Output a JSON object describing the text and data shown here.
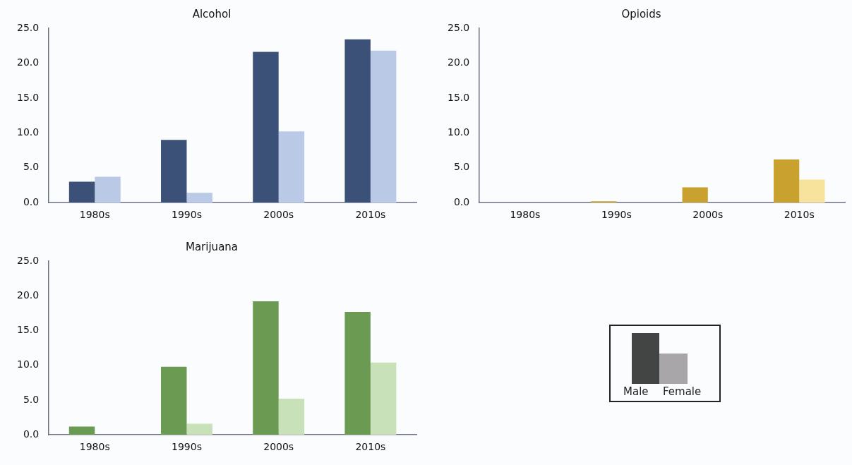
{
  "chart_data": [
    {
      "type": "bar",
      "title": "Alcohol",
      "categories": [
        "1980s",
        "1990s",
        "2000s",
        "2010s"
      ],
      "series": [
        {
          "color": "#3b5178",
          "values": [
            3.0,
            9.0,
            21.6,
            23.4
          ]
        },
        {
          "color": "#b9c9e6",
          "values": [
            3.7,
            1.4,
            10.2,
            21.8
          ]
        }
      ],
      "ylim": [
        0,
        25
      ],
      "yticks": [
        {
          "value": 0,
          "label": "0.0"
        },
        {
          "value": 5,
          "label": "5.0"
        },
        {
          "value": 10,
          "label": "10.0"
        },
        {
          "value": 15,
          "label": "15.0"
        },
        {
          "value": 20,
          "label": "20.0"
        },
        {
          "value": 25,
          "label": "25.0"
        }
      ],
      "grid": false,
      "legend": false
    },
    {
      "type": "bar",
      "title": "Opioids",
      "categories": [
        "1980s",
        "1990s",
        "2000s",
        "2010s"
      ],
      "series": [
        {
          "color": "#c9a12f",
          "values": [
            0,
            0.2,
            2.2,
            6.2
          ]
        },
        {
          "color": "#f8e39c",
          "values": [
            0,
            0,
            0,
            3.3
          ]
        }
      ],
      "ylim": [
        0,
        25
      ],
      "yticks": [
        {
          "value": 0,
          "label": "0.0"
        },
        {
          "value": 5,
          "label": "5.0"
        },
        {
          "value": 10,
          "label": "10.0"
        },
        {
          "value": 15,
          "label": "15.0"
        },
        {
          "value": 20,
          "label": "20.0"
        },
        {
          "value": 25,
          "label": "25.0"
        }
      ],
      "grid": false,
      "legend": false
    },
    {
      "type": "bar",
      "title": "Marijuana",
      "categories": [
        "1980s",
        "1990s",
        "2000s",
        "2010s"
      ],
      "series": [
        {
          "color": "#6b9a53",
          "values": [
            1.2,
            9.8,
            19.2,
            17.7
          ]
        },
        {
          "color": "#c8e1b9",
          "values": [
            0,
            1.6,
            5.2,
            10.4
          ]
        }
      ],
      "ylim": [
        0,
        25
      ],
      "yticks": [
        {
          "value": 0,
          "label": "0.0"
        },
        {
          "value": 5,
          "label": "5.0"
        },
        {
          "value": 10,
          "label": "10.0"
        },
        {
          "value": 15,
          "label": "15.0"
        },
        {
          "value": 20,
          "label": "20.0"
        },
        {
          "value": 25,
          "label": "25.0"
        }
      ],
      "grid": false,
      "legend": false
    },
    {
      "type": "other",
      "annotations": [
        "Male",
        "Female"
      ]
    }
  ]
}
